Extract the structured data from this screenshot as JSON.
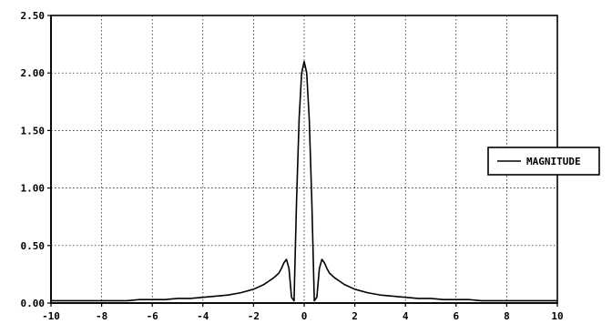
{
  "chart_data": {
    "type": "line",
    "title": "",
    "xlabel": "",
    "ylabel": "",
    "xlim": [
      -10,
      10
    ],
    "ylim": [
      0,
      2.5
    ],
    "grid": true,
    "legend_position": "right",
    "x_ticks": [
      {
        "value": -10,
        "label": "-10"
      },
      {
        "value": -8,
        "label": "-8"
      },
      {
        "value": -6,
        "label": "-6"
      },
      {
        "value": -4,
        "label": "-4"
      },
      {
        "value": -2,
        "label": "-2"
      },
      {
        "value": 0,
        "label": "0"
      },
      {
        "value": 2,
        "label": "2"
      },
      {
        "value": 4,
        "label": "4"
      },
      {
        "value": 6,
        "label": "6"
      },
      {
        "value": 8,
        "label": "8"
      },
      {
        "value": 10,
        "label": "10"
      }
    ],
    "y_ticks": [
      {
        "value": 0.0,
        "label": "0.00"
      },
      {
        "value": 0.5,
        "label": "0.50"
      },
      {
        "value": 1.0,
        "label": "1.00"
      },
      {
        "value": 1.5,
        "label": "1.50"
      },
      {
        "value": 2.0,
        "label": "2.00"
      },
      {
        "value": 2.5,
        "label": "2.50"
      }
    ],
    "series": [
      {
        "name": "MAGNITUDE",
        "color": "#000000",
        "x": [
          -10,
          -9.5,
          -9,
          -8.5,
          -8,
          -7.5,
          -7,
          -6.5,
          -6,
          -5.5,
          -5,
          -4.5,
          -4,
          -3.5,
          -3,
          -2.5,
          -2,
          -1.8,
          -1.6,
          -1.4,
          -1.2,
          -1.0,
          -0.9,
          -0.8,
          -0.7,
          -0.6,
          -0.5,
          -0.4,
          -0.3,
          -0.2,
          -0.1,
          0,
          0.1,
          0.2,
          0.3,
          0.4,
          0.5,
          0.6,
          0.7,
          0.8,
          0.9,
          1.0,
          1.2,
          1.4,
          1.6,
          1.8,
          2,
          2.5,
          3,
          3.5,
          4,
          4.5,
          5,
          5.5,
          6,
          6.5,
          7,
          7.5,
          8,
          8.5,
          9,
          9.5,
          10
        ],
        "y": [
          0.02,
          0.02,
          0.02,
          0.02,
          0.02,
          0.02,
          0.02,
          0.03,
          0.03,
          0.03,
          0.04,
          0.04,
          0.05,
          0.06,
          0.07,
          0.09,
          0.12,
          0.14,
          0.16,
          0.19,
          0.22,
          0.26,
          0.3,
          0.35,
          0.38,
          0.3,
          0.05,
          0.02,
          0.9,
          1.6,
          2.0,
          2.1,
          2.0,
          1.6,
          0.9,
          0.02,
          0.05,
          0.3,
          0.38,
          0.35,
          0.3,
          0.26,
          0.22,
          0.19,
          0.16,
          0.14,
          0.12,
          0.09,
          0.07,
          0.06,
          0.05,
          0.04,
          0.04,
          0.03,
          0.03,
          0.03,
          0.02,
          0.02,
          0.02,
          0.02,
          0.02,
          0.02,
          0.02
        ]
      }
    ]
  }
}
